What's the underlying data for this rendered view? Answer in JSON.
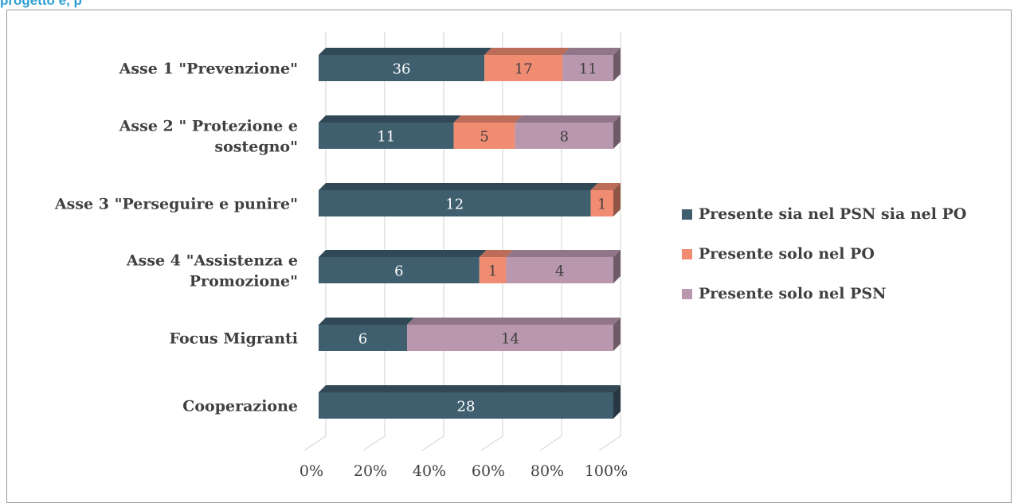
{
  "heading_fragment": "progetto e, p",
  "chart_data": {
    "type": "bar",
    "orientation": "horizontal",
    "stacking": "percent",
    "style": "3d",
    "categories": [
      "Asse 1 \"Prevenzione\"",
      "Asse 2 \" Protezione e sostegno\"",
      "Asse 3 \"Perseguire e punire\"",
      "Asse 4 \"Assistenza e Promozione\"",
      "Focus Migranti",
      "Cooperazione"
    ],
    "category_lines": [
      [
        "Asse 1 \"Prevenzione\""
      ],
      [
        "Asse 2 \" Protezione e",
        "sostegno\""
      ],
      [
        "Asse 3 \"Perseguire e punire\""
      ],
      [
        "Asse 4 \"Assistenza e",
        "Promozione\""
      ],
      [
        "Focus Migranti"
      ],
      [
        "Cooperazione"
      ]
    ],
    "series": [
      {
        "name": "Presente sia nel PSN sia nel PO",
        "color": "#3f5e6e",
        "values": [
          36,
          11,
          12,
          6,
          6,
          28
        ]
      },
      {
        "name": "Presente solo nel PO",
        "color": "#f08c72",
        "values": [
          17,
          5,
          1,
          1,
          0,
          0
        ]
      },
      {
        "name": "Presente solo nel PSN",
        "color": "#b997ae",
        "values": [
          11,
          8,
          0,
          4,
          14,
          0
        ]
      }
    ],
    "x_ticks": [
      "0%",
      "20%",
      "40%",
      "60%",
      "80%",
      "100%"
    ],
    "xlim": [
      0,
      100
    ],
    "grid": true,
    "legend_position": "right"
  }
}
